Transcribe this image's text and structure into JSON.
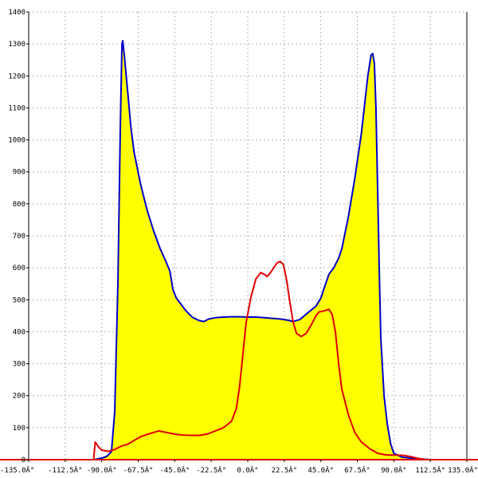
{
  "chart_data": {
    "type": "area",
    "title": "",
    "xlabel": "",
    "ylabel": "",
    "xlim": [
      -135,
      135
    ],
    "ylim": [
      0,
      1400
    ],
    "grid": true,
    "x_ticks": [
      -135,
      -112.5,
      -90,
      -67.5,
      -45,
      -22.5,
      0,
      22.5,
      45,
      67.5,
      90,
      112.5,
      135
    ],
    "x_tick_labels": [
      "-135.0Â°",
      "-112.5Â°",
      "-90.0Â°",
      "-67.5Â°",
      "-45.0Â°",
      "-22.5Â°",
      "0.0Â°",
      "22.5Â°",
      "45.0Â°",
      "67.5Â°",
      "90.0Â°",
      "112.5Â°",
      "135.0Â°"
    ],
    "y_ticks": [
      0,
      100,
      200,
      300,
      400,
      500,
      600,
      700,
      800,
      900,
      1000,
      1100,
      1200,
      1300,
      1400
    ],
    "y_tick_labels": [
      "0",
      "100",
      "200",
      "300",
      "400",
      "500",
      "600",
      "700",
      "800",
      "900",
      "1000",
      "1100",
      "1200",
      "1300",
      "1400"
    ],
    "colors": {
      "fill": "#ffff00",
      "blue": "#0000cc",
      "red": "#e00000",
      "grid": "#b4b4b4"
    },
    "series": [
      {
        "color": "blue",
        "filled": true,
        "points": [
          [
            -95,
            0
          ],
          [
            -90,
            5
          ],
          [
            -87,
            10
          ],
          [
            -84,
            25
          ],
          [
            -82,
            150
          ],
          [
            -80,
            550
          ],
          [
            -78.5,
            1050
          ],
          [
            -77.5,
            1300
          ],
          [
            -77,
            1310
          ],
          [
            -76,
            1260
          ],
          [
            -74,
            1150
          ],
          [
            -72,
            1040
          ],
          [
            -70,
            960
          ],
          [
            -66,
            860
          ],
          [
            -62,
            780
          ],
          [
            -58,
            715
          ],
          [
            -54,
            660
          ],
          [
            -50,
            615
          ],
          [
            -48,
            590
          ],
          [
            -46,
            530
          ],
          [
            -44,
            505
          ],
          [
            -42,
            492
          ],
          [
            -38,
            465
          ],
          [
            -34,
            445
          ],
          [
            -30,
            435
          ],
          [
            -27,
            432
          ],
          [
            -24,
            440
          ],
          [
            -20,
            444
          ],
          [
            -15,
            446
          ],
          [
            -10,
            447
          ],
          [
            -5,
            447
          ],
          [
            0,
            446
          ],
          [
            5,
            446
          ],
          [
            10,
            444
          ],
          [
            15,
            442
          ],
          [
            20,
            440
          ],
          [
            25,
            436
          ],
          [
            28,
            432
          ],
          [
            32,
            438
          ],
          [
            36,
            455
          ],
          [
            42,
            480
          ],
          [
            45,
            505
          ],
          [
            47,
            535
          ],
          [
            50,
            580
          ],
          [
            53,
            600
          ],
          [
            56,
            630
          ],
          [
            58,
            660
          ],
          [
            62,
            760
          ],
          [
            66,
            880
          ],
          [
            70,
            1020
          ],
          [
            74,
            1200
          ],
          [
            76,
            1265
          ],
          [
            77,
            1270
          ],
          [
            78,
            1240
          ],
          [
            79,
            1100
          ],
          [
            80,
            850
          ],
          [
            81,
            600
          ],
          [
            82,
            380
          ],
          [
            84,
            200
          ],
          [
            86,
            110
          ],
          [
            88,
            50
          ],
          [
            90,
            20
          ],
          [
            95,
            8
          ],
          [
            100,
            5
          ],
          [
            105,
            3
          ],
          [
            112.5,
            0
          ]
        ]
      },
      {
        "color": "red",
        "filled": false,
        "points": [
          [
            -135,
            0
          ],
          [
            -95,
            0
          ],
          [
            -94,
            55
          ],
          [
            -92,
            40
          ],
          [
            -90,
            30
          ],
          [
            -86,
            26
          ],
          [
            -82,
            32
          ],
          [
            -78,
            42
          ],
          [
            -74,
            48
          ],
          [
            -70,
            60
          ],
          [
            -66,
            72
          ],
          [
            -60,
            82
          ],
          [
            -55,
            90
          ],
          [
            -50,
            85
          ],
          [
            -45,
            80
          ],
          [
            -40,
            77
          ],
          [
            -35,
            76
          ],
          [
            -30,
            76
          ],
          [
            -25,
            80
          ],
          [
            -20,
            90
          ],
          [
            -15,
            100
          ],
          [
            -10,
            120
          ],
          [
            -7,
            160
          ],
          [
            -5,
            230
          ],
          [
            -3,
            330
          ],
          [
            -1,
            430
          ],
          [
            2,
            510
          ],
          [
            5,
            565
          ],
          [
            8,
            585
          ],
          [
            10,
            580
          ],
          [
            12,
            573
          ],
          [
            14,
            585
          ],
          [
            16,
            600
          ],
          [
            18,
            615
          ],
          [
            20,
            620
          ],
          [
            22,
            610
          ],
          [
            24,
            560
          ],
          [
            26,
            490
          ],
          [
            28,
            430
          ],
          [
            30,
            395
          ],
          [
            33,
            385
          ],
          [
            36,
            395
          ],
          [
            39,
            420
          ],
          [
            42,
            450
          ],
          [
            44,
            462
          ],
          [
            47,
            465
          ],
          [
            50,
            470
          ],
          [
            52,
            455
          ],
          [
            54,
            400
          ],
          [
            56,
            300
          ],
          [
            58,
            220
          ],
          [
            62,
            140
          ],
          [
            66,
            85
          ],
          [
            70,
            55
          ],
          [
            75,
            35
          ],
          [
            80,
            20
          ],
          [
            85,
            15
          ],
          [
            90,
            14
          ],
          [
            95,
            14
          ],
          [
            100,
            10
          ],
          [
            105,
            4
          ],
          [
            110,
            0
          ],
          [
            135,
            0
          ]
        ]
      }
    ]
  }
}
